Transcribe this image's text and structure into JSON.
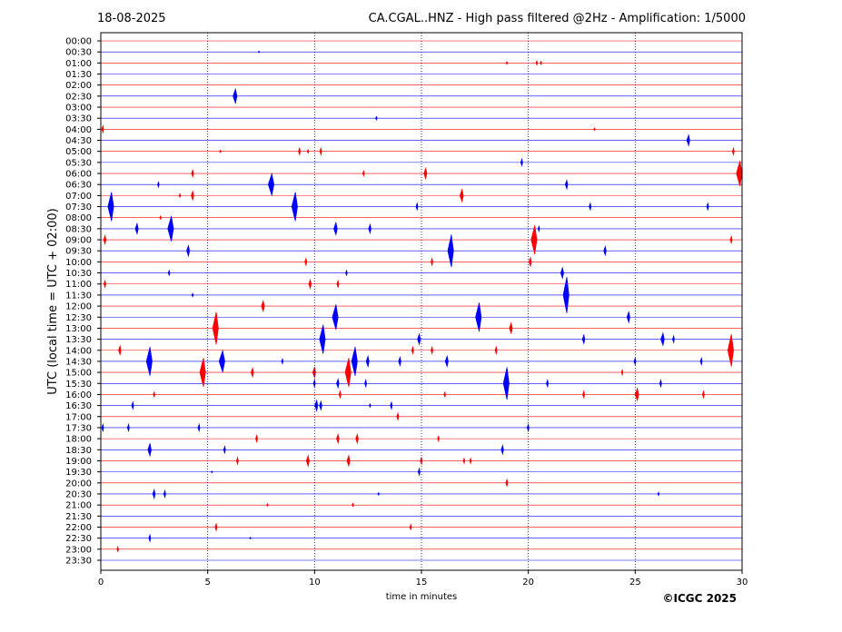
{
  "header": {
    "date": "18-08-2025",
    "title": "CA.CGAL..HNZ - High pass filtered @2Hz - Amplification: 1/5000"
  },
  "credit": "©ICGC 2025",
  "colors": {
    "red_trace": "#ff0000",
    "blue_trace": "#0000ff",
    "gridline": "#000080",
    "axes": "#000000"
  },
  "chart_data": {
    "type": "line",
    "subtype": "helicorder",
    "xlabel": "time in minutes",
    "ylabel": "UTC (local time = UTC + 02:00)",
    "xlim": [
      0,
      30
    ],
    "x_ticks": [
      0,
      5,
      10,
      15,
      20,
      25,
      30
    ],
    "x_tick_labels": [
      "0",
      "5",
      "10",
      "15",
      "20",
      "25",
      "30"
    ],
    "x_gridlines": [
      5,
      10,
      15,
      20,
      25
    ],
    "grid": "vertical dotted",
    "trace_colors_alternate": [
      "red",
      "blue"
    ],
    "rows": [
      "00:00",
      "00:30",
      "01:00",
      "01:30",
      "02:00",
      "02:30",
      "03:00",
      "03:30",
      "04:00",
      "04:30",
      "05:00",
      "05:30",
      "06:00",
      "06:30",
      "07:00",
      "07:30",
      "08:00",
      "08:30",
      "09:00",
      "09:30",
      "10:00",
      "10:30",
      "11:00",
      "11:30",
      "12:00",
      "12:30",
      "13:00",
      "13:30",
      "14:00",
      "14:30",
      "15:00",
      "15:30",
      "16:00",
      "16:30",
      "17:00",
      "17:30",
      "18:00",
      "18:30",
      "19:00",
      "19:30",
      "20:00",
      "20:30",
      "21:00",
      "21:30",
      "22:00",
      "22:30",
      "23:00",
      "23:30"
    ],
    "events": [
      {
        "row": "00:30",
        "t": 7.4,
        "amp": 1
      },
      {
        "row": "01:00",
        "t": 19.0,
        "amp": 1.5
      },
      {
        "row": "01:00",
        "t": 20.4,
        "amp": 2.5
      },
      {
        "row": "01:00",
        "t": 20.6,
        "amp": 2
      },
      {
        "row": "02:30",
        "t": 6.3,
        "amp": 8
      },
      {
        "row": "03:30",
        "t": 12.9,
        "amp": 2
      },
      {
        "row": "04:00",
        "t": 0.1,
        "amp": 4
      },
      {
        "row": "04:00",
        "t": 23.1,
        "amp": 1.5
      },
      {
        "row": "04:30",
        "t": 27.5,
        "amp": 6
      },
      {
        "row": "05:00",
        "t": 5.6,
        "amp": 1.5
      },
      {
        "row": "05:00",
        "t": 9.3,
        "amp": 4
      },
      {
        "row": "05:00",
        "t": 9.7,
        "amp": 2
      },
      {
        "row": "05:00",
        "t": 10.3,
        "amp": 4
      },
      {
        "row": "05:00",
        "t": 29.6,
        "amp": 4
      },
      {
        "row": "05:30",
        "t": 19.7,
        "amp": 4
      },
      {
        "row": "06:00",
        "t": 4.3,
        "amp": 4
      },
      {
        "row": "06:00",
        "t": 12.3,
        "amp": 3
      },
      {
        "row": "06:00",
        "t": 15.2,
        "amp": 6
      },
      {
        "row": "06:00",
        "t": 29.9,
        "amp": 14
      },
      {
        "row": "06:30",
        "t": 2.7,
        "amp": 3
      },
      {
        "row": "06:30",
        "t": 8.0,
        "amp": 12
      },
      {
        "row": "06:30",
        "t": 21.8,
        "amp": 5
      },
      {
        "row": "07:00",
        "t": 3.7,
        "amp": 2
      },
      {
        "row": "07:00",
        "t": 4.3,
        "amp": 5
      },
      {
        "row": "07:00",
        "t": 16.9,
        "amp": 7
      },
      {
        "row": "07:30",
        "t": 0.5,
        "amp": 16
      },
      {
        "row": "07:30",
        "t": 9.1,
        "amp": 16
      },
      {
        "row": "07:30",
        "t": 14.8,
        "amp": 4
      },
      {
        "row": "07:30",
        "t": 22.9,
        "amp": 4
      },
      {
        "row": "07:30",
        "t": 28.4,
        "amp": 4
      },
      {
        "row": "08:00",
        "t": 2.8,
        "amp": 2
      },
      {
        "row": "08:30",
        "t": 1.7,
        "amp": 6
      },
      {
        "row": "08:30",
        "t": 3.3,
        "amp": 14
      },
      {
        "row": "08:30",
        "t": 11.0,
        "amp": 7
      },
      {
        "row": "08:30",
        "t": 12.6,
        "amp": 5
      },
      {
        "row": "08:30",
        "t": 20.5,
        "amp": 3
      },
      {
        "row": "09:00",
        "t": 0.2,
        "amp": 5
      },
      {
        "row": "09:00",
        "t": 20.3,
        "amp": 16
      },
      {
        "row": "09:00",
        "t": 29.5,
        "amp": 4
      },
      {
        "row": "09:30",
        "t": 4.1,
        "amp": 6
      },
      {
        "row": "09:30",
        "t": 16.4,
        "amp": 18
      },
      {
        "row": "09:30",
        "t": 23.6,
        "amp": 5
      },
      {
        "row": "10:00",
        "t": 9.6,
        "amp": 4
      },
      {
        "row": "10:00",
        "t": 15.5,
        "amp": 4
      },
      {
        "row": "10:00",
        "t": 20.1,
        "amp": 5
      },
      {
        "row": "10:30",
        "t": 3.2,
        "amp": 3
      },
      {
        "row": "10:30",
        "t": 11.5,
        "amp": 3
      },
      {
        "row": "10:30",
        "t": 21.6,
        "amp": 6
      },
      {
        "row": "11:00",
        "t": 0.2,
        "amp": 4
      },
      {
        "row": "11:00",
        "t": 9.8,
        "amp": 5
      },
      {
        "row": "11:00",
        "t": 11.1,
        "amp": 4
      },
      {
        "row": "11:30",
        "t": 4.3,
        "amp": 2
      },
      {
        "row": "11:30",
        "t": 21.8,
        "amp": 20
      },
      {
        "row": "12:00",
        "t": 7.6,
        "amp": 6
      },
      {
        "row": "12:30",
        "t": 11.0,
        "amp": 14
      },
      {
        "row": "12:30",
        "t": 17.7,
        "amp": 16
      },
      {
        "row": "12:30",
        "t": 24.7,
        "amp": 6
      },
      {
        "row": "13:00",
        "t": 5.4,
        "amp": 18
      },
      {
        "row": "13:00",
        "t": 19.2,
        "amp": 6
      },
      {
        "row": "13:30",
        "t": 10.4,
        "amp": 16
      },
      {
        "row": "13:30",
        "t": 14.9,
        "amp": 6
      },
      {
        "row": "13:30",
        "t": 22.6,
        "amp": 5
      },
      {
        "row": "13:30",
        "t": 26.3,
        "amp": 7
      },
      {
        "row": "13:30",
        "t": 26.8,
        "amp": 4
      },
      {
        "row": "14:00",
        "t": 0.9,
        "amp": 5
      },
      {
        "row": "14:00",
        "t": 14.6,
        "amp": 4
      },
      {
        "row": "14:00",
        "t": 15.5,
        "amp": 4
      },
      {
        "row": "14:00",
        "t": 18.5,
        "amp": 4
      },
      {
        "row": "14:00",
        "t": 29.5,
        "amp": 18
      },
      {
        "row": "14:30",
        "t": 2.3,
        "amp": 16
      },
      {
        "row": "14:30",
        "t": 5.7,
        "amp": 12
      },
      {
        "row": "14:30",
        "t": 8.5,
        "amp": 3
      },
      {
        "row": "14:30",
        "t": 11.9,
        "amp": 16
      },
      {
        "row": "14:30",
        "t": 12.5,
        "amp": 6
      },
      {
        "row": "14:30",
        "t": 14.0,
        "amp": 5
      },
      {
        "row": "14:30",
        "t": 16.2,
        "amp": 6
      },
      {
        "row": "14:30",
        "t": 25.0,
        "amp": 4
      },
      {
        "row": "14:30",
        "t": 28.1,
        "amp": 4
      },
      {
        "row": "15:00",
        "t": 4.8,
        "amp": 16
      },
      {
        "row": "15:00",
        "t": 7.1,
        "amp": 5
      },
      {
        "row": "15:00",
        "t": 10.0,
        "amp": 6
      },
      {
        "row": "15:00",
        "t": 11.6,
        "amp": 16
      },
      {
        "row": "15:00",
        "t": 24.4,
        "amp": 3
      },
      {
        "row": "15:30",
        "t": 10.0,
        "amp": 4
      },
      {
        "row": "15:30",
        "t": 11.1,
        "amp": 5
      },
      {
        "row": "15:30",
        "t": 12.4,
        "amp": 4
      },
      {
        "row": "15:30",
        "t": 19.0,
        "amp": 18
      },
      {
        "row": "15:30",
        "t": 20.9,
        "amp": 4
      },
      {
        "row": "15:30",
        "t": 26.2,
        "amp": 4
      },
      {
        "row": "16:00",
        "t": 2.5,
        "amp": 3
      },
      {
        "row": "16:00",
        "t": 11.2,
        "amp": 4
      },
      {
        "row": "16:00",
        "t": 16.1,
        "amp": 3
      },
      {
        "row": "16:00",
        "t": 22.6,
        "amp": 4
      },
      {
        "row": "16:00",
        "t": 25.1,
        "amp": 7
      },
      {
        "row": "16:00",
        "t": 28.2,
        "amp": 4
      },
      {
        "row": "16:30",
        "t": 1.5,
        "amp": 4
      },
      {
        "row": "16:30",
        "t": 10.1,
        "amp": 6
      },
      {
        "row": "16:30",
        "t": 10.3,
        "amp": 5
      },
      {
        "row": "16:30",
        "t": 12.6,
        "amp": 2
      },
      {
        "row": "16:30",
        "t": 13.6,
        "amp": 4
      },
      {
        "row": "17:00",
        "t": 13.9,
        "amp": 4
      },
      {
        "row": "17:30",
        "t": 0.1,
        "amp": 4
      },
      {
        "row": "17:30",
        "t": 1.3,
        "amp": 4
      },
      {
        "row": "17:30",
        "t": 4.6,
        "amp": 4
      },
      {
        "row": "17:30",
        "t": 20.0,
        "amp": 4
      },
      {
        "row": "18:00",
        "t": 7.3,
        "amp": 4
      },
      {
        "row": "18:00",
        "t": 11.1,
        "amp": 5
      },
      {
        "row": "18:00",
        "t": 12.0,
        "amp": 5
      },
      {
        "row": "18:00",
        "t": 15.8,
        "amp": 3
      },
      {
        "row": "18:30",
        "t": 2.3,
        "amp": 7
      },
      {
        "row": "18:30",
        "t": 5.8,
        "amp": 4
      },
      {
        "row": "18:30",
        "t": 18.8,
        "amp": 5
      },
      {
        "row": "19:00",
        "t": 6.4,
        "amp": 4
      },
      {
        "row": "19:00",
        "t": 9.7,
        "amp": 6
      },
      {
        "row": "19:00",
        "t": 11.6,
        "amp": 6
      },
      {
        "row": "19:00",
        "t": 15.0,
        "amp": 4
      },
      {
        "row": "19:00",
        "t": 17.0,
        "amp": 3
      },
      {
        "row": "19:00",
        "t": 17.3,
        "amp": 3
      },
      {
        "row": "19:30",
        "t": 5.2,
        "amp": 1
      },
      {
        "row": "19:30",
        "t": 14.9,
        "amp": 4
      },
      {
        "row": "20:00",
        "t": 19.0,
        "amp": 4
      },
      {
        "row": "20:30",
        "t": 2.5,
        "amp": 5
      },
      {
        "row": "20:30",
        "t": 3.0,
        "amp": 4
      },
      {
        "row": "20:30",
        "t": 13.0,
        "amp": 1.5
      },
      {
        "row": "20:30",
        "t": 26.1,
        "amp": 2
      },
      {
        "row": "21:00",
        "t": 7.8,
        "amp": 1.5
      },
      {
        "row": "21:00",
        "t": 11.8,
        "amp": 2
      },
      {
        "row": "22:00",
        "t": 5.4,
        "amp": 4
      },
      {
        "row": "22:00",
        "t": 14.5,
        "amp": 3
      },
      {
        "row": "22:30",
        "t": 2.3,
        "amp": 4
      },
      {
        "row": "22:30",
        "t": 7.0,
        "amp": 1
      },
      {
        "row": "23:00",
        "t": 0.8,
        "amp": 3
      }
    ]
  }
}
